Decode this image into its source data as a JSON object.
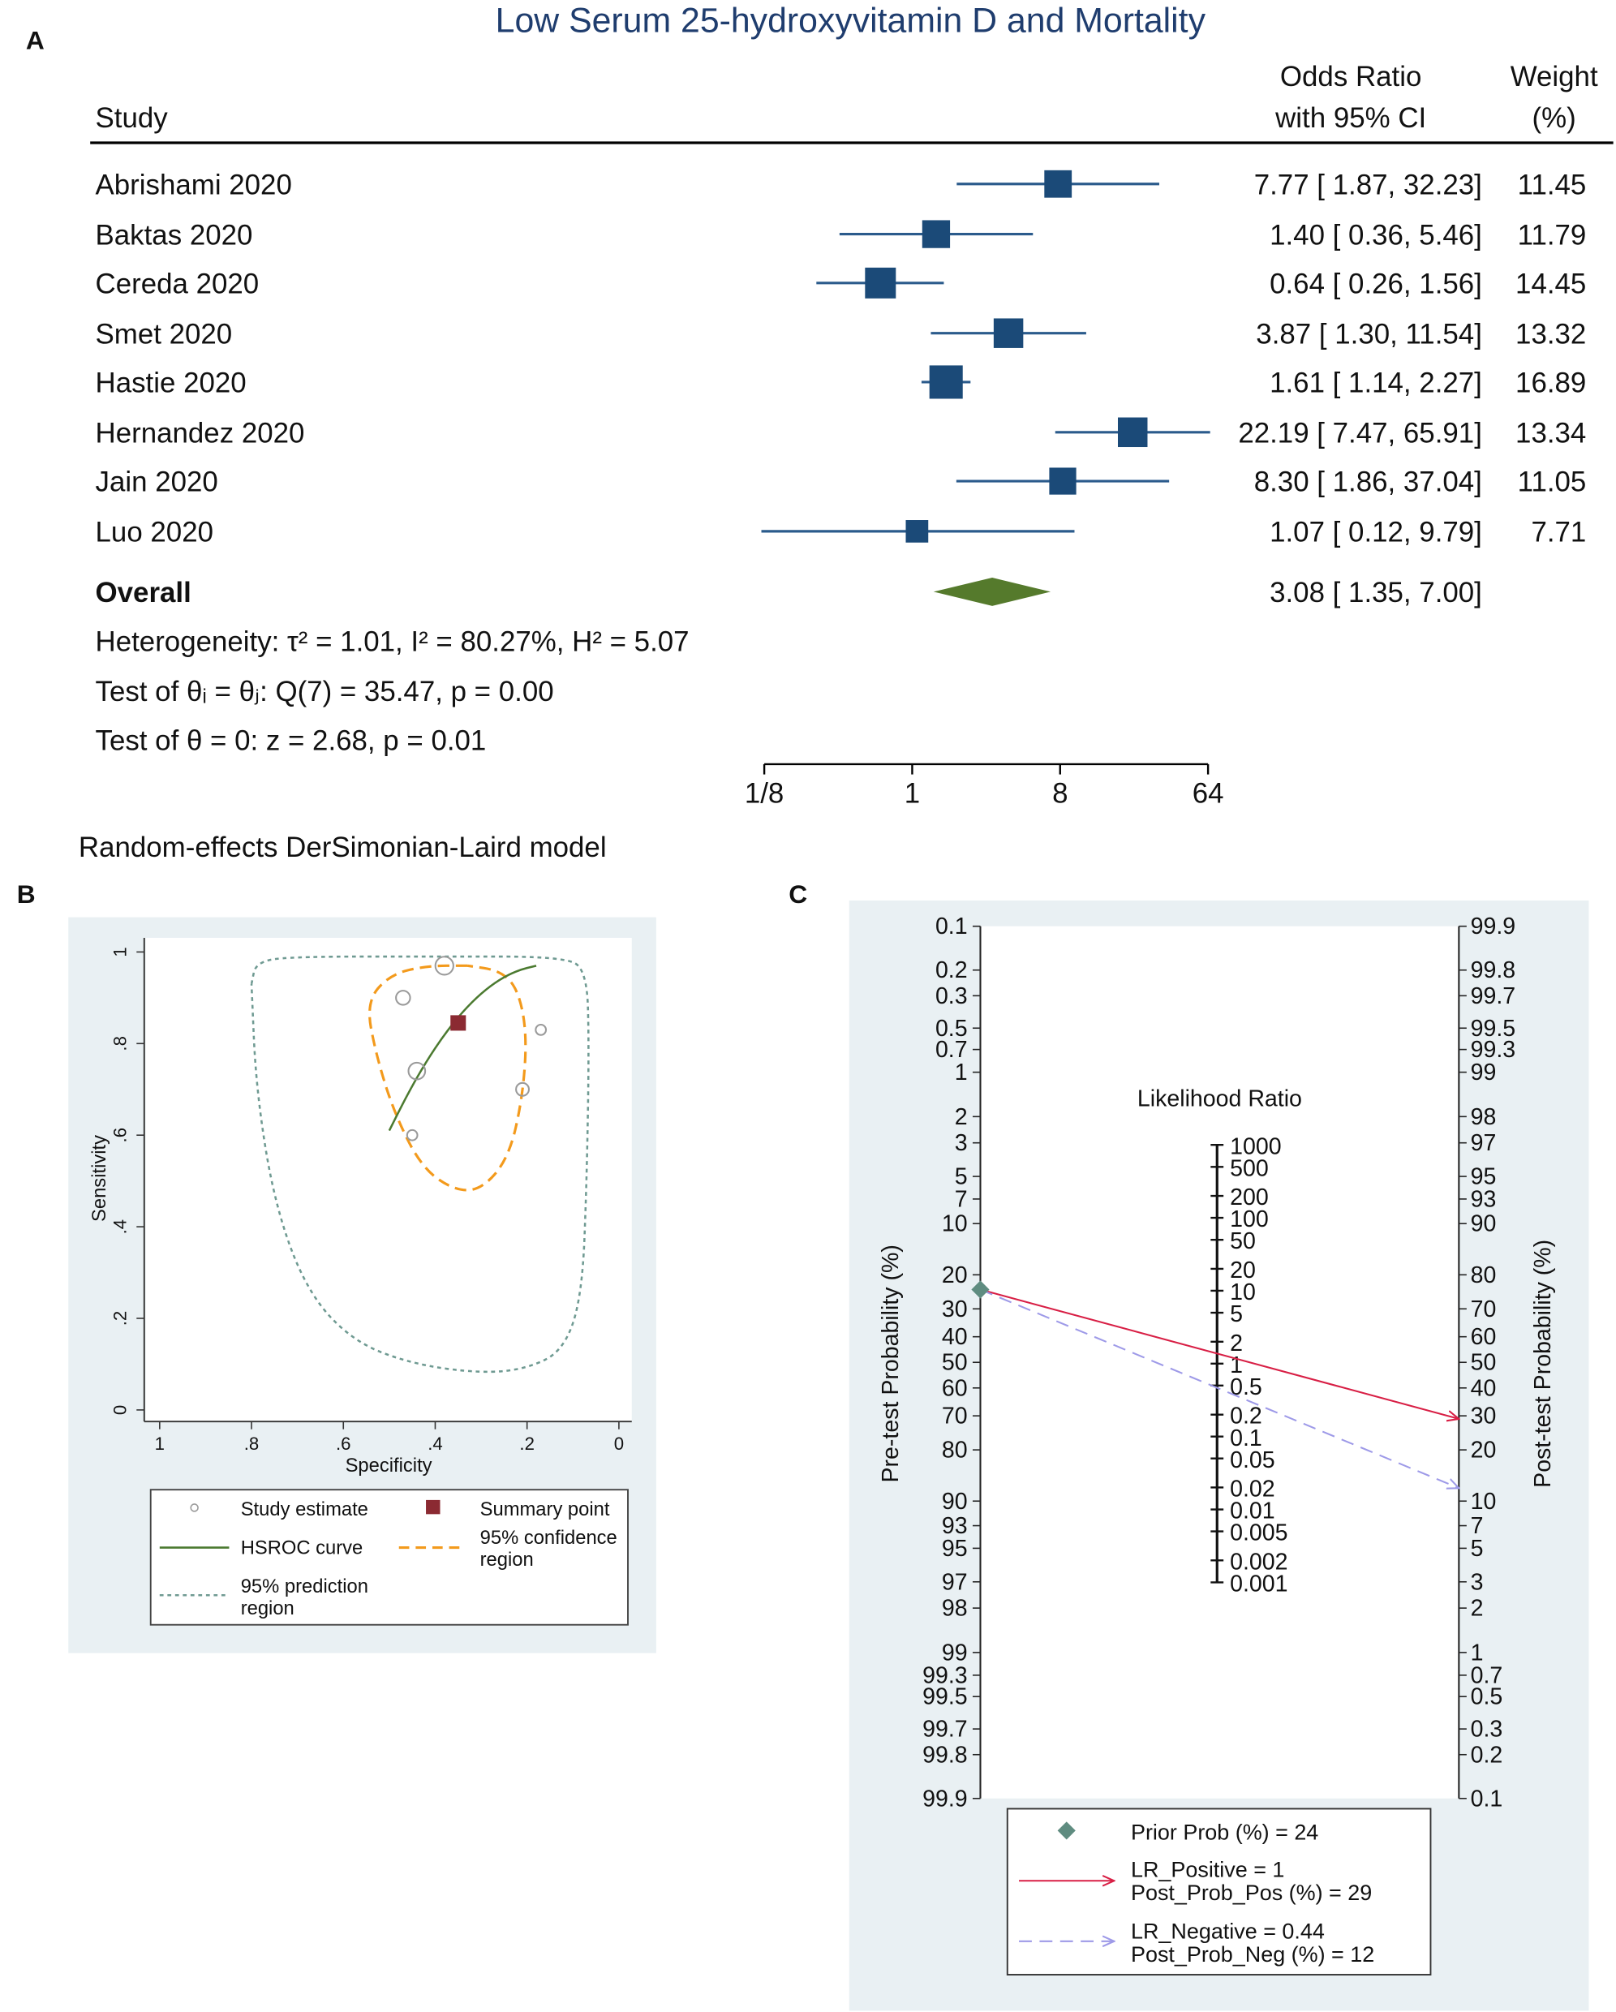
{
  "chart_data": [
    {
      "panel": "A",
      "type": "forest",
      "title": "Low Serum 25-hydroxyvitamin D and Mortality",
      "columns": {
        "study": "Study",
        "or_line1": "Odds Ratio",
        "or_line2": "with 95% CI",
        "weight_line1": "Weight",
        "weight_line2": "(%)"
      },
      "studies": [
        {
          "name": "Abrishami 2020",
          "or": 7.77,
          "lo": 1.87,
          "hi": 32.23,
          "ci_text": "7.77 [ 1.87,  32.23]",
          "weight": "11.45"
        },
        {
          "name": "Baktas 2020",
          "or": 1.4,
          "lo": 0.36,
          "hi": 5.46,
          "ci_text": "1.40 [ 0.36,    5.46]",
          "weight": "11.79"
        },
        {
          "name": "Cereda 2020",
          "or": 0.64,
          "lo": 0.26,
          "hi": 1.56,
          "ci_text": "0.64 [ 0.26,    1.56]",
          "weight": "14.45"
        },
        {
          "name": "Smet 2020",
          "or": 3.87,
          "lo": 1.3,
          "hi": 11.54,
          "ci_text": "3.87 [ 1.30,  11.54]",
          "weight": "13.32"
        },
        {
          "name": "Hastie 2020",
          "or": 1.61,
          "lo": 1.14,
          "hi": 2.27,
          "ci_text": "1.61 [ 1.14,    2.27]",
          "weight": "16.89"
        },
        {
          "name": "Hernandez 2020",
          "or": 22.19,
          "lo": 7.47,
          "hi": 65.91,
          "ci_text": "22.19 [ 7.47,  65.91]",
          "weight": "13.34"
        },
        {
          "name": "Jain 2020",
          "or": 8.3,
          "lo": 1.86,
          "hi": 37.04,
          "ci_text": "8.30 [ 1.86,  37.04]",
          "weight": "11.05"
        },
        {
          "name": "Luo 2020",
          "or": 1.07,
          "lo": 0.12,
          "hi": 9.79,
          "ci_text": "1.07 [ 0.12,    9.79]",
          "weight": "7.71"
        }
      ],
      "overall": {
        "label": "Overall",
        "or": 3.08,
        "lo": 1.35,
        "hi": 7.0,
        "ci_text": "3.08 [ 1.35,    7.00]"
      },
      "stats": [
        "Heterogeneity: τ² = 1.01, I² = 80.27%, H² = 5.07",
        "Test of θᵢ = θⱼ: Q(7) = 35.47, p = 0.00",
        "Test of θ = 0: z = 2.68, p = 0.01"
      ],
      "x_scale": "log2",
      "x_ticks": [
        {
          "value": 0.125,
          "label": "1/8"
        },
        {
          "value": 1,
          "label": "1"
        },
        {
          "value": 8,
          "label": "8"
        },
        {
          "value": 64,
          "label": "64"
        }
      ],
      "footnote": "Random-effects DerSimonian-Laird model",
      "colors": {
        "title": "#1f3d6e",
        "marker": "#1b4a78",
        "ci_line": "#2b5b8c",
        "diamond": "#557a2c"
      }
    },
    {
      "panel": "B",
      "type": "scatter",
      "xlabel": "Specificity",
      "ylabel": "Sensitivity",
      "xlim": [
        1,
        0
      ],
      "ylim": [
        0,
        1
      ],
      "x_ticks": [
        "1",
        ".8",
        ".6",
        ".4",
        ".2",
        "0"
      ],
      "x_tick_values": [
        1,
        0.8,
        0.6,
        0.4,
        0.2,
        0
      ],
      "y_ticks": [
        "0",
        ".2",
        ".4",
        ".6",
        ".8",
        "1"
      ],
      "y_tick_values": [
        0,
        0.2,
        0.4,
        0.6,
        0.8,
        1
      ],
      "study_estimates": [
        {
          "spec": 0.38,
          "sens": 0.97,
          "size": 1.4
        },
        {
          "spec": 0.47,
          "sens": 0.9,
          "size": 1.1
        },
        {
          "spec": 0.44,
          "sens": 0.74,
          "size": 1.3
        },
        {
          "spec": 0.45,
          "sens": 0.6,
          "size": 0.8
        },
        {
          "spec": 0.17,
          "sens": 0.83,
          "size": 0.8
        },
        {
          "spec": 0.21,
          "sens": 0.7,
          "size": 1.0
        }
      ],
      "summary_point": {
        "spec": 0.35,
        "sens": 0.845
      },
      "hsroc_curve": [
        [
          0.5,
          0.61
        ],
        [
          0.46,
          0.69
        ],
        [
          0.42,
          0.76
        ],
        [
          0.38,
          0.82
        ],
        [
          0.34,
          0.87
        ],
        [
          0.3,
          0.91
        ],
        [
          0.26,
          0.94
        ],
        [
          0.22,
          0.96
        ],
        [
          0.18,
          0.97
        ]
      ],
      "confidence_region": [
        [
          0.33,
          0.97
        ],
        [
          0.42,
          0.97
        ],
        [
          0.5,
          0.95
        ],
        [
          0.55,
          0.89
        ],
        [
          0.53,
          0.78
        ],
        [
          0.49,
          0.65
        ],
        [
          0.43,
          0.53
        ],
        [
          0.36,
          0.48
        ],
        [
          0.3,
          0.48
        ],
        [
          0.24,
          0.55
        ],
        [
          0.21,
          0.68
        ],
        [
          0.2,
          0.82
        ],
        [
          0.22,
          0.92
        ],
        [
          0.26,
          0.96
        ],
        [
          0.33,
          0.97
        ]
      ],
      "prediction_region": [
        [
          0.8,
          0.93
        ],
        [
          0.79,
          0.98
        ],
        [
          0.7,
          0.99
        ],
        [
          0.4,
          0.99
        ],
        [
          0.12,
          0.99
        ],
        [
          0.07,
          0.96
        ],
        [
          0.065,
          0.8
        ],
        [
          0.07,
          0.5
        ],
        [
          0.08,
          0.25
        ],
        [
          0.12,
          0.13
        ],
        [
          0.2,
          0.09
        ],
        [
          0.3,
          0.08
        ],
        [
          0.45,
          0.1
        ],
        [
          0.58,
          0.15
        ],
        [
          0.68,
          0.26
        ],
        [
          0.75,
          0.45
        ],
        [
          0.79,
          0.7
        ],
        [
          0.8,
          0.93
        ]
      ],
      "legend": {
        "placement": "bottom",
        "items": [
          "Study estimate",
          "Summary point",
          "HSROC curve",
          "95% confidence",
          "region",
          "95% prediction",
          "region"
        ]
      },
      "colors": {
        "points": "#9a9a9a",
        "summary": "#8b2a32",
        "hsroc": "#4b7a30",
        "confidence": "#f39a1c",
        "prediction": "#6f9a92",
        "background": "#e9f0f3"
      }
    },
    {
      "panel": "C",
      "type": "nomogram",
      "title": "Likelihood Ratio",
      "left_label": "Pre-test Probability (%)",
      "right_label": "Post-test Probability (%)",
      "left_ticks": [
        "0.1",
        "0.2",
        "0.3",
        "0.5",
        "0.7",
        "1",
        "2",
        "3",
        "5",
        "7",
        "10",
        "20",
        "30",
        "40",
        "50",
        "60",
        "70",
        "80",
        "90",
        "93",
        "95",
        "97",
        "98",
        "99",
        "99.3",
        "99.5",
        "99.7",
        "99.8",
        "99.9"
      ],
      "right_ticks": [
        "99.9",
        "99.8",
        "99.7",
        "99.5",
        "99.3",
        "99",
        "98",
        "97",
        "95",
        "93",
        "90",
        "80",
        "70",
        "60",
        "50",
        "40",
        "30",
        "20",
        "10",
        "7",
        "5",
        "3",
        "2",
        "1",
        "0.7",
        "0.5",
        "0.3",
        "0.2",
        "0.1"
      ],
      "lr_ticks": [
        "1000",
        "500",
        "200",
        "100",
        "50",
        "20",
        "10",
        "5",
        "2",
        "1",
        "0.5",
        "0.2",
        "0.1",
        "0.05",
        "0.02",
        "0.01",
        "0.005",
        "0.002",
        "0.001"
      ],
      "prior_prob": 24,
      "lr_positive": 1,
      "post_prob_pos": 29,
      "lr_negative": 0.44,
      "post_prob_neg": 12,
      "legend": {
        "prior": "Prior Prob (%) =     24",
        "lr_pos": "LR_Positive =      1",
        "post_pos": "Post_Prob_Pos (%) =   29",
        "lr_neg": "LR_Negative =  0.44",
        "post_neg": "Post_Prob_Neg (%) =     12"
      },
      "colors": {
        "prior": "#5f8c80",
        "positive": "#d81f45",
        "negative": "#9e9ae8",
        "background": "#e9f0f3"
      }
    }
  ],
  "panel_labels": [
    "A",
    "B",
    "C"
  ]
}
